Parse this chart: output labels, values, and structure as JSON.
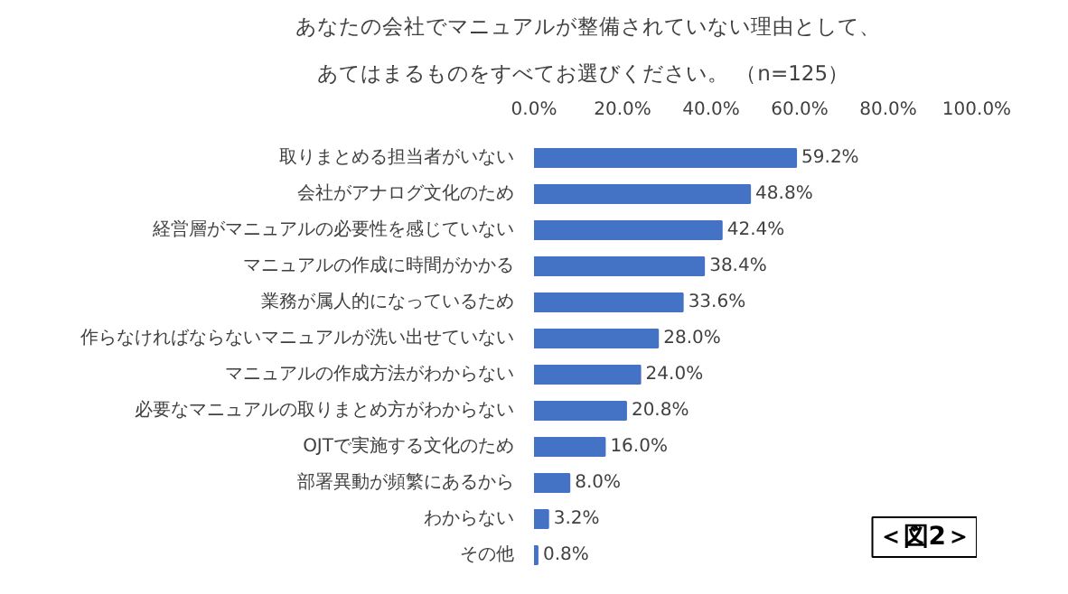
{
  "chart_data": {
    "type": "bar",
    "orientation": "horizontal",
    "title": "あなたの会社でマニュアルが整備されていない理由として、",
    "subtitle": "あてはまるものをすべてお選びください。 （n=125）",
    "categories": [
      "取りまとめる担当者がいない",
      "会社がアナログ文化のため",
      "経営層がマニュアルの必要性を感じていない",
      "マニュアルの作成に時間がかかる",
      "業務が属人的になっているため",
      "作らなければならないマニュアルが洗い出せていない",
      "マニュアルの作成方法がわからない",
      "必要なマニュアルの取りまとめ方がわからない",
      "OJTで実施する文化のため",
      "部署異動が頻繁にあるから",
      "わからない",
      "その他"
    ],
    "values": [
      59.2,
      48.8,
      42.4,
      38.4,
      33.6,
      28.0,
      24.0,
      20.8,
      16.0,
      8.0,
      3.2,
      0.8
    ],
    "value_labels": [
      "59.2%",
      "48.8%",
      "42.4%",
      "38.4%",
      "33.6%",
      "28.0%",
      "24.0%",
      "20.8%",
      "16.0%",
      "8.0%",
      "3.2%",
      "0.8%"
    ],
    "color": "#4472c4",
    "xlim": [
      0,
      100
    ],
    "xticks": [
      {
        "value": 0,
        "label": "0.0%"
      },
      {
        "value": 20,
        "label": "20.0%"
      },
      {
        "value": 40,
        "label": "40.0%"
      },
      {
        "value": 60,
        "label": "60.0%"
      },
      {
        "value": 80,
        "label": "80.0%"
      },
      {
        "value": 100,
        "label": "100.0%"
      }
    ],
    "grid": false,
    "annotations": [
      "＜図2＞"
    ]
  }
}
